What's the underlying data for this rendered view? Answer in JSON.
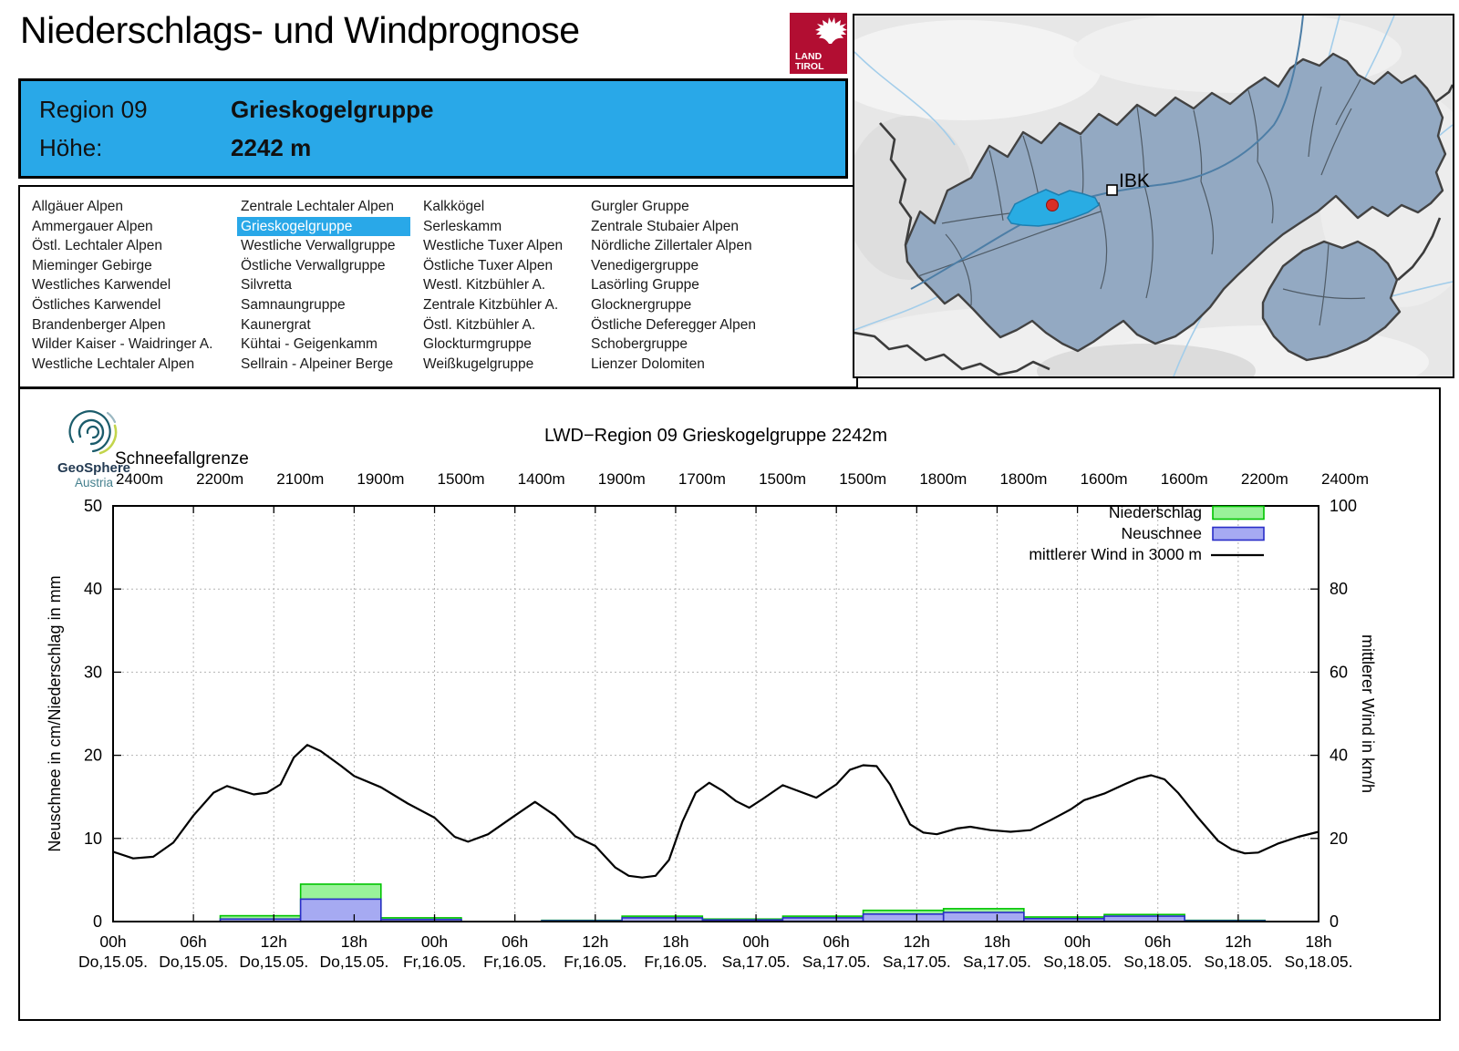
{
  "header": {
    "title": "Niederschlags- und Windprognose",
    "logo": {
      "line1": "LAND",
      "line2": "TIROL",
      "color": "#b20e32"
    }
  },
  "region_box": {
    "bg": "#29a8e8",
    "region_label": "Region 09",
    "region_name": "Grieskogelgruppe",
    "altitude_label": "Höhe:",
    "altitude_value": "2242 m"
  },
  "region_list": {
    "selected": "Grieskogelgruppe",
    "highlight_color": "#29a8e8",
    "columns": [
      [
        "Allgäuer Alpen",
        "Ammergauer Alpen",
        "Östl. Lechtaler Alpen",
        "Mieminger Gebirge",
        "Westliches Karwendel",
        "Östliches Karwendel",
        "Brandenberger Alpen",
        "Wilder Kaiser - Waidringer A.",
        "Westliche Lechtaler Alpen"
      ],
      [
        "Zentrale Lechtaler Alpen",
        "Grieskogelgruppe",
        "Westliche Verwallgruppe",
        "Östliche Verwallgruppe",
        "Silvretta",
        "Samnaungruppe",
        "Kaunergrat",
        "Kühtai - Geigenkamm",
        "Sellrain - Alpeiner Berge"
      ],
      [
        "Kalkkögel",
        "Serleskamm",
        "Westliche Tuxer Alpen",
        "Östliche Tuxer Alpen",
        "Westl. Kitzbühler A.",
        "Zentrale Kitzbühler A.",
        "Östl. Kitzbühler A.",
        "Glockturmgruppe",
        "Weißkugelgruppe"
      ],
      [
        "Gurgler Gruppe",
        "Zentrale Stubaier Alpen",
        "Nördliche Zillertaler Alpen",
        "Venedigergruppe",
        "Lasörling Gruppe",
        "Glocknergruppe",
        "Östliche Deferegger Alpen",
        "Schobergruppe",
        "Lienzer Dolomiten"
      ]
    ]
  },
  "map": {
    "city_label": "IBK",
    "highlight_color": "#29ace3",
    "region_fill": "#93a9c2",
    "marker_color": "#d92f25"
  },
  "geosphere": {
    "name": "GeoSphere",
    "country": "Austria"
  },
  "chart_data": {
    "type": "bar+line",
    "title": "LWD−Region 09 Grieskogelgruppe 2242m",
    "snowline": {
      "label": "Schneefallgrenze",
      "values": [
        "2400m",
        "2200m",
        "2100m",
        "1900m",
        "1500m",
        "1400m",
        "1900m",
        "1700m",
        "1500m",
        "1500m",
        "1800m",
        "1800m",
        "1600m",
        "1600m",
        "2200m",
        "2400m"
      ]
    },
    "x_axis": {
      "unit": "hours",
      "range_hours": [
        0,
        90
      ],
      "tick_interval_h": 6,
      "tick_labels": [
        {
          "time": "00h",
          "date": "Do,15.05."
        },
        {
          "time": "06h",
          "date": "Do,15.05."
        },
        {
          "time": "12h",
          "date": "Do,15.05."
        },
        {
          "time": "18h",
          "date": "Do,15.05."
        },
        {
          "time": "00h",
          "date": "Fr,16.05."
        },
        {
          "time": "06h",
          "date": "Fr,16.05."
        },
        {
          "time": "12h",
          "date": "Fr,16.05."
        },
        {
          "time": "18h",
          "date": "Fr,16.05."
        },
        {
          "time": "00h",
          "date": "Sa,17.05."
        },
        {
          "time": "06h",
          "date": "Sa,17.05."
        },
        {
          "time": "12h",
          "date": "Sa,17.05."
        },
        {
          "time": "18h",
          "date": "Sa,17.05."
        },
        {
          "time": "00h",
          "date": "So,18.05."
        },
        {
          "time": "06h",
          "date": "So,18.05."
        },
        {
          "time": "12h",
          "date": "So,18.05."
        },
        {
          "time": "18h",
          "date": "So,18.05."
        }
      ]
    },
    "y_left": {
      "label": "Neuschnee in cm/Niederschlag in mm",
      "range": [
        0,
        50
      ],
      "ticks": [
        0,
        10,
        20,
        30,
        40,
        50
      ]
    },
    "y_right": {
      "label": "mittlerer Wind in km/h",
      "range": [
        0,
        100
      ],
      "ticks": [
        0,
        20,
        40,
        60,
        80,
        100
      ]
    },
    "legend": {
      "position": "top-right",
      "entries": [
        "Niederschlag",
        "Neuschnee",
        "mittlerer Wind in 3000 m"
      ]
    },
    "series": [
      {
        "name": "Niederschlag",
        "type": "bar",
        "axis": "left",
        "unit": "mm",
        "fill": "#9af29a",
        "stroke": "#00c400",
        "bar_width_h": 6,
        "starts_h": [
          8,
          14,
          20,
          26,
          32,
          38,
          44,
          50,
          56,
          62,
          68,
          74,
          80
        ],
        "values": [
          0.7,
          4.5,
          0.45,
          0,
          0.15,
          0.65,
          0.3,
          0.65,
          1.35,
          1.55,
          0.55,
          0.85,
          0.15
        ]
      },
      {
        "name": "Neuschnee",
        "type": "bar",
        "axis": "left",
        "unit": "cm",
        "fill": "#a6aaf2",
        "stroke": "#2a2ec8",
        "bar_width_h": 6,
        "starts_h": [
          8,
          14,
          20,
          26,
          32,
          38,
          44,
          50,
          56,
          62,
          68,
          74,
          80
        ],
        "values": [
          0.3,
          2.7,
          0.25,
          0,
          0.1,
          0.45,
          0.2,
          0.45,
          0.9,
          1.1,
          0.35,
          0.65,
          0.1
        ]
      },
      {
        "name": "mittlerer Wind in 3000 m",
        "type": "line",
        "axis": "right",
        "unit": "km/h",
        "stroke": "#000000",
        "points": [
          [
            0,
            16.8
          ],
          [
            1.5,
            15.2
          ],
          [
            3,
            15.6
          ],
          [
            4.5,
            19.0
          ],
          [
            6,
            25.5
          ],
          [
            7.5,
            31.0
          ],
          [
            8.5,
            32.6
          ],
          [
            9.5,
            31.6
          ],
          [
            10.5,
            30.6
          ],
          [
            11.5,
            31.0
          ],
          [
            12.5,
            33.0
          ],
          [
            13.5,
            39.5
          ],
          [
            14.5,
            42.5
          ],
          [
            15.5,
            41.0
          ],
          [
            17,
            37.5
          ],
          [
            18,
            35.0
          ],
          [
            20,
            32.3
          ],
          [
            22,
            28.4
          ],
          [
            24,
            25.0
          ],
          [
            25.5,
            20.4
          ],
          [
            26.5,
            19.2
          ],
          [
            28,
            21.0
          ],
          [
            30,
            25.5
          ],
          [
            31.5,
            28.8
          ],
          [
            33,
            25.5
          ],
          [
            34.5,
            20.5
          ],
          [
            36,
            18.2
          ],
          [
            37.5,
            13.0
          ],
          [
            38.5,
            11.0
          ],
          [
            39.5,
            10.6
          ],
          [
            40.5,
            11.0
          ],
          [
            41.5,
            14.8
          ],
          [
            42.5,
            24.0
          ],
          [
            43.5,
            31.0
          ],
          [
            44.5,
            33.4
          ],
          [
            45.5,
            31.5
          ],
          [
            46.5,
            29.0
          ],
          [
            47.5,
            27.4
          ],
          [
            48.5,
            29.5
          ],
          [
            50,
            32.8
          ],
          [
            51,
            31.6
          ],
          [
            52.5,
            29.8
          ],
          [
            54,
            33.0
          ],
          [
            55,
            36.5
          ],
          [
            56,
            37.6
          ],
          [
            57,
            37.4
          ],
          [
            58,
            33.0
          ],
          [
            59.5,
            23.4
          ],
          [
            60.5,
            21.4
          ],
          [
            61.5,
            21.0
          ],
          [
            63,
            22.4
          ],
          [
            64,
            22.8
          ],
          [
            65.5,
            22.0
          ],
          [
            67,
            21.6
          ],
          [
            68.5,
            22.0
          ],
          [
            70,
            24.4
          ],
          [
            71.5,
            27.0
          ],
          [
            72.5,
            29.2
          ],
          [
            74,
            30.8
          ],
          [
            75.5,
            33.0
          ],
          [
            76.5,
            34.4
          ],
          [
            77.5,
            35.2
          ],
          [
            78.5,
            34.2
          ],
          [
            79.5,
            31.0
          ],
          [
            81,
            25.0
          ],
          [
            82.5,
            19.4
          ],
          [
            83.5,
            17.4
          ],
          [
            84.5,
            16.4
          ],
          [
            85.5,
            16.6
          ],
          [
            87,
            18.8
          ],
          [
            88.5,
            20.4
          ],
          [
            90,
            21.6
          ]
        ]
      }
    ]
  }
}
